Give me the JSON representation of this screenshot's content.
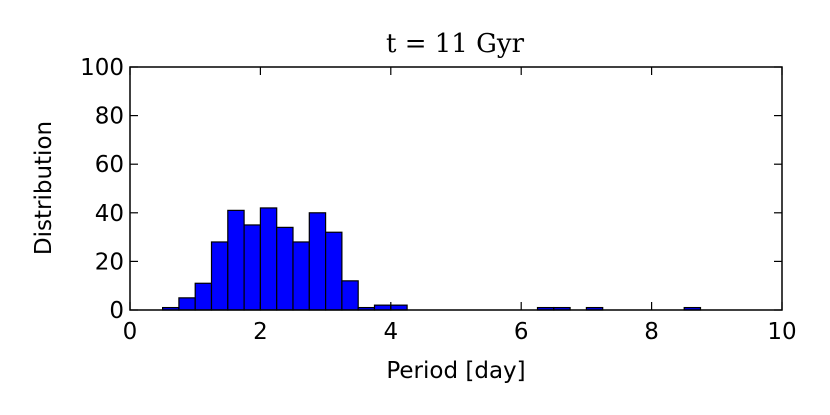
{
  "chart_data": {
    "type": "bar",
    "title": "t = 11 Gyr",
    "xlabel": "Period [day]",
    "ylabel": "Distribution",
    "xlim": [
      0,
      10
    ],
    "ylim": [
      0,
      100
    ],
    "xticks": [
      "0",
      "2",
      "4",
      "6",
      "8",
      "10"
    ],
    "yticks": [
      "0",
      "20",
      "40",
      "60",
      "80",
      "100"
    ],
    "bin_width": 0.25,
    "bins": [
      {
        "x0": 0.5,
        "value": 1
      },
      {
        "x0": 0.75,
        "value": 5
      },
      {
        "x0": 1.0,
        "value": 11
      },
      {
        "x0": 1.25,
        "value": 28
      },
      {
        "x0": 1.5,
        "value": 41
      },
      {
        "x0": 1.75,
        "value": 35
      },
      {
        "x0": 2.0,
        "value": 42
      },
      {
        "x0": 2.25,
        "value": 34
      },
      {
        "x0": 2.5,
        "value": 28
      },
      {
        "x0": 2.75,
        "value": 40
      },
      {
        "x0": 3.0,
        "value": 32
      },
      {
        "x0": 3.25,
        "value": 12
      },
      {
        "x0": 3.5,
        "value": 1
      },
      {
        "x0": 3.75,
        "value": 2
      },
      {
        "x0": 4.0,
        "value": 2
      },
      {
        "x0": 6.25,
        "value": 1
      },
      {
        "x0": 6.5,
        "value": 1
      },
      {
        "x0": 7.0,
        "value": 1
      },
      {
        "x0": 8.5,
        "value": 1
      }
    ],
    "bar_color": "#0000ff",
    "grid": false
  }
}
